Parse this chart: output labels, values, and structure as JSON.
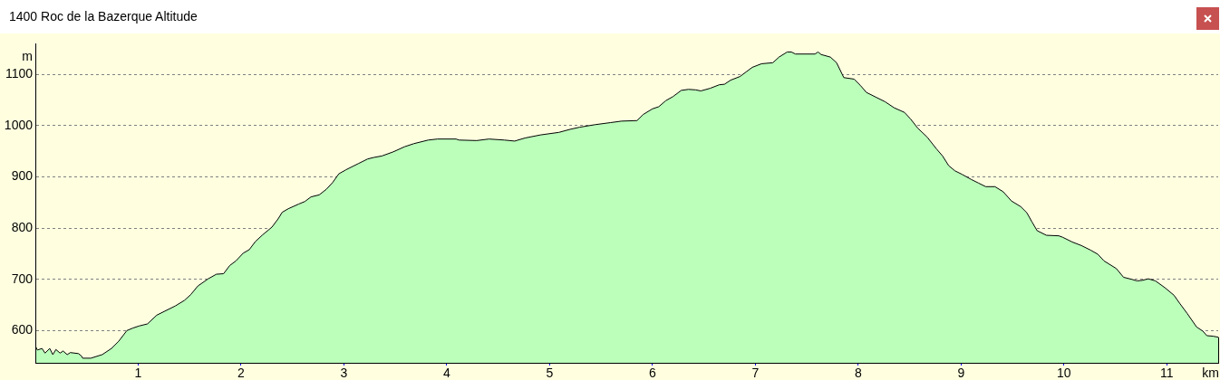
{
  "chart_data": {
    "type": "area",
    "title": "1400 Roc de la Bazerque Altitude",
    "xlabel": "km",
    "ylabel": "m",
    "x": [
      0,
      0.02,
      0.065,
      0.094,
      0.14,
      0.17,
      0.2,
      0.24,
      0.27,
      0.31,
      0.34,
      0.42,
      0.45,
      0.46,
      0.54,
      0.65,
      0.74,
      0.81,
      0.89,
      0.95,
      1.01,
      1.09,
      1.18,
      1.26,
      1.36,
      1.45,
      1.51,
      1.58,
      1.68,
      1.76,
      1.83,
      1.89,
      1.95,
      2.02,
      2.08,
      2.14,
      2.21,
      2.3,
      2.36,
      2.4,
      2.46,
      2.56,
      2.62,
      2.68,
      2.76,
      2.83,
      2.89,
      2.95,
      3.02,
      3.14,
      3.23,
      3.29,
      3.37,
      3.48,
      3.59,
      3.68,
      3.82,
      3.91,
      4.09,
      4.12,
      4.29,
      4.41,
      4.56,
      4.66,
      4.76,
      4.91,
      5.09,
      5.2,
      5.29,
      5.44,
      5.59,
      5.7,
      5.85,
      5.91,
      6.0,
      6.06,
      6.13,
      6.2,
      6.28,
      6.35,
      6.42,
      6.47,
      6.56,
      6.65,
      6.7,
      6.76,
      6.85,
      6.91,
      6.97,
      7.06,
      7.17,
      7.23,
      7.31,
      7.35,
      7.39,
      7.58,
      7.61,
      7.64,
      7.73,
      7.79,
      7.86,
      7.96,
      8.02,
      8.08,
      8.17,
      8.26,
      8.35,
      8.45,
      8.51,
      8.58,
      8.67,
      8.76,
      8.82,
      8.88,
      8.94,
      9.01,
      9.1,
      9.17,
      9.24,
      9.33,
      9.41,
      9.49,
      9.58,
      9.64,
      9.69,
      9.74,
      9.83,
      9.95,
      9.99,
      10.08,
      10.17,
      10.26,
      10.33,
      10.39,
      10.51,
      10.58,
      10.66,
      10.71,
      10.76,
      10.82,
      10.89,
      10.98,
      11.07,
      11.13,
      11.2,
      11.29,
      11.35,
      11.39,
      11.45,
      11.5
    ],
    "values": [
      570,
      562,
      565,
      556,
      565,
      553,
      563,
      556,
      560,
      553,
      557,
      555,
      550,
      546,
      546,
      553,
      565,
      579,
      600,
      605,
      609,
      613,
      630,
      638,
      648,
      659,
      670,
      687,
      701,
      710,
      711,
      727,
      736,
      751,
      758,
      774,
      787,
      802,
      818,
      831,
      838,
      847,
      852,
      861,
      865,
      876,
      889,
      906,
      914,
      926,
      935,
      938,
      941,
      949,
      959,
      965,
      972,
      974,
      974,
      972,
      971,
      974,
      972,
      970,
      976,
      982,
      987,
      993,
      997,
      1002,
      1006,
      1009,
      1010,
      1022,
      1033,
      1037,
      1049,
      1057,
      1069,
      1071,
      1070,
      1068,
      1073,
      1080,
      1081,
      1089,
      1096,
      1105,
      1114,
      1121,
      1123,
      1134,
      1144,
      1144,
      1140,
      1140,
      1144,
      1139,
      1134,
      1123,
      1094,
      1091,
      1079,
      1065,
      1056,
      1047,
      1035,
      1026,
      1013,
      995,
      978,
      955,
      941,
      922,
      912,
      905,
      895,
      888,
      881,
      881,
      871,
      853,
      842,
      830,
      812,
      795,
      786,
      785,
      782,
      773,
      766,
      757,
      749,
      736,
      721,
      704,
      700,
      697,
      698,
      701,
      697,
      684,
      669,
      652,
      633,
      607,
      599,
      590,
      589,
      587
    ],
    "color": "#bbffbb",
    "marker": "none",
    "xlim": [
      0,
      11.5
    ],
    "ylim": [
      537,
      1160
    ],
    "xticks": [
      1,
      2,
      3,
      4,
      5,
      6,
      7,
      8,
      9,
      10,
      11
    ],
    "yticks": [
      600,
      700,
      800,
      900,
      1000,
      1100
    ],
    "grid": "y"
  }
}
